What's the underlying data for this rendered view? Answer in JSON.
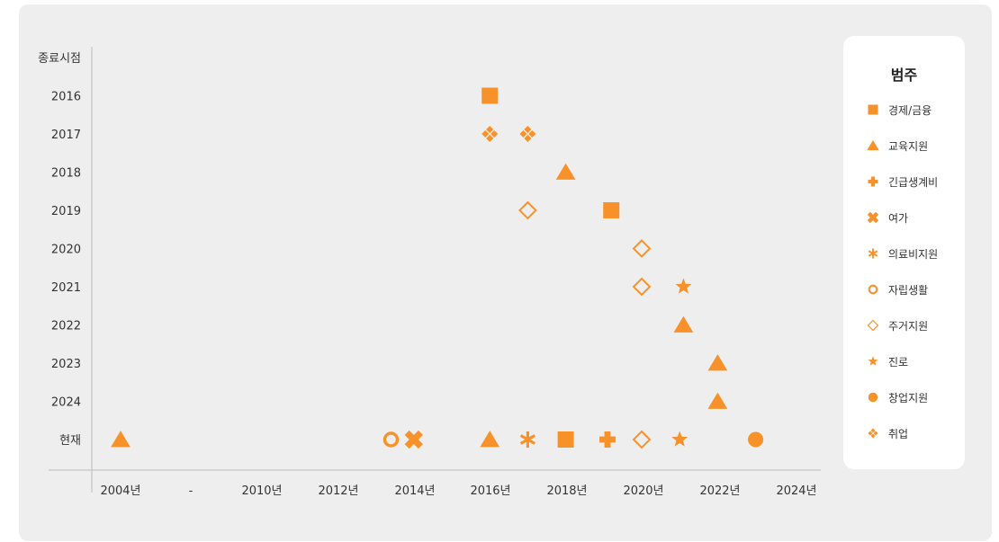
{
  "colors": {
    "accent": "#f7922a",
    "panel": "#eeeeee",
    "axis": "#bbbbbb"
  },
  "legend": {
    "title": "범주",
    "items": [
      {
        "label": "경제/금융",
        "icon": "square"
      },
      {
        "label": "교육지원",
        "icon": "triangle"
      },
      {
        "label": "긴급생계비",
        "icon": "plus"
      },
      {
        "label": "여가",
        "icon": "cross"
      },
      {
        "label": "의료비지원",
        "icon": "asterisk"
      },
      {
        "label": "자립생활",
        "icon": "ring"
      },
      {
        "label": "주거지원",
        "icon": "diamond-outline"
      },
      {
        "label": "진로",
        "icon": "star"
      },
      {
        "label": "창업지원",
        "icon": "circle"
      },
      {
        "label": "취업",
        "icon": "diamond-cluster"
      }
    ]
  },
  "chart_data": {
    "type": "scatter",
    "ylabel": "종료시점",
    "y_categories": [
      "2016",
      "2017",
      "2018",
      "2019",
      "2020",
      "2021",
      "2022",
      "2023",
      "2024",
      "현재"
    ],
    "x_tick_labels": [
      "2004년",
      "-",
      "2010년",
      "2012년",
      "2014년",
      "2016년",
      "2018년",
      "2020년",
      "2022년",
      "2024년"
    ],
    "x_tick_values": [
      2004,
      null,
      2010,
      2012,
      2014,
      2016,
      2018,
      2020,
      2022,
      2024
    ],
    "grid": false,
    "legend_position": "right",
    "points": [
      {
        "x": 2016,
        "y": "2016",
        "category": "경제/금융"
      },
      {
        "x": 2016,
        "y": "2017",
        "category": "취업"
      },
      {
        "x": 2017,
        "y": "2017",
        "category": "취업"
      },
      {
        "x": 2018,
        "y": "2018",
        "category": "교육지원"
      },
      {
        "x": 2017,
        "y": "2019",
        "category": "주거지원"
      },
      {
        "x": 2019.2,
        "y": "2019",
        "category": "경제/금융"
      },
      {
        "x": 2020,
        "y": "2020",
        "category": "주거지원"
      },
      {
        "x": 2020,
        "y": "2021",
        "category": "주거지원"
      },
      {
        "x": 2021.1,
        "y": "2021",
        "category": "진로"
      },
      {
        "x": 2021.1,
        "y": "2022",
        "category": "교육지원"
      },
      {
        "x": 2022,
        "y": "2023",
        "category": "교육지원"
      },
      {
        "x": 2022,
        "y": "2024",
        "category": "교육지원"
      },
      {
        "x": 2004,
        "y": "현재",
        "category": "교육지원"
      },
      {
        "x": 2013.4,
        "y": "현재",
        "category": "자립생활"
      },
      {
        "x": 2014,
        "y": "현재",
        "category": "여가"
      },
      {
        "x": 2016,
        "y": "현재",
        "category": "교육지원"
      },
      {
        "x": 2017,
        "y": "현재",
        "category": "의료비지원"
      },
      {
        "x": 2018,
        "y": "현재",
        "category": "경제/금융"
      },
      {
        "x": 2019.1,
        "y": "현재",
        "category": "긴급생계비"
      },
      {
        "x": 2020,
        "y": "현재",
        "category": "주거지원"
      },
      {
        "x": 2021,
        "y": "현재",
        "category": "진로"
      },
      {
        "x": 2023,
        "y": "현재",
        "category": "창업지원"
      }
    ]
  }
}
